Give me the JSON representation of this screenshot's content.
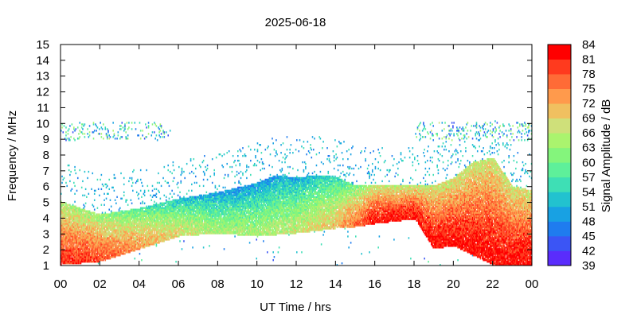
{
  "chart_data": {
    "type": "heatmap",
    "title": "2025-06-18",
    "xlabel": "UT Time / hrs",
    "ylabel": "Frequency / MHz",
    "colorbar_label": "Signal Amplitude / dB",
    "xlim": [
      0,
      24
    ],
    "ylim": [
      1,
      15
    ],
    "x_tick_labels": [
      "00",
      "02",
      "04",
      "06",
      "08",
      "10",
      "12",
      "14",
      "16",
      "18",
      "20",
      "22",
      "00"
    ],
    "y_tick_labels": [
      "1",
      "2",
      "3",
      "4",
      "5",
      "6",
      "7",
      "8",
      "9",
      "10",
      "11",
      "12",
      "13",
      "14",
      "15"
    ],
    "colorbar_tick_labels": [
      "39",
      "42",
      "45",
      "48",
      "51",
      "54",
      "57",
      "60",
      "63",
      "66",
      "69",
      "72",
      "75",
      "78",
      "81",
      "84"
    ],
    "colorbar_range": [
      39,
      84
    ],
    "colorscale": [
      "#7f00ff",
      "#5a2cfc",
      "#3b55f5",
      "#1f7cef",
      "#18a1e3",
      "#22c2cf",
      "#3edfb5",
      "#5ef09a",
      "#84f57c",
      "#aaf46e",
      "#cfe07a",
      "#f0c060",
      "#ff9a4c",
      "#ff6b36",
      "#ff3a1e",
      "#ff0000"
    ],
    "series": [
      {
        "name": "lower-edge frequency (MHz)",
        "x": [
          0,
          2,
          4,
          6,
          8,
          10,
          12,
          14,
          15,
          16,
          18,
          19,
          20,
          22,
          24
        ],
        "values": [
          1.0,
          1.2,
          2.0,
          2.8,
          3.0,
          2.8,
          3.0,
          3.3,
          3.4,
          3.6,
          3.9,
          2.0,
          2.2,
          1.0,
          1.0
        ]
      },
      {
        "name": "upper-edge frequency (MHz)",
        "x": [
          0,
          2,
          4,
          6,
          8,
          10,
          11,
          12,
          13,
          14,
          15,
          16,
          18,
          19,
          20,
          21,
          22,
          23,
          24
        ],
        "values": [
          5.0,
          4.2,
          4.6,
          5.2,
          5.6,
          6.2,
          6.7,
          6.5,
          6.7,
          6.6,
          6.0,
          6.0,
          6.0,
          6.0,
          6.5,
          7.5,
          7.8,
          6.0,
          5.7
        ]
      },
      {
        "name": "peak amplitude (dB)",
        "x": [
          0,
          2,
          4,
          6,
          8,
          10,
          12,
          14,
          16,
          18,
          20,
          22,
          24
        ],
        "values": [
          82,
          80,
          75,
          70,
          66,
          66,
          68,
          72,
          84,
          84,
          84,
          84,
          84
        ]
      }
    ],
    "sporadic_band": {
      "freq_range": [
        8.8,
        10.0
      ],
      "time_ranges": [
        [
          0,
          5.6
        ],
        [
          18.0,
          24
        ]
      ]
    },
    "grid": false,
    "legend": "colorbar-right"
  }
}
